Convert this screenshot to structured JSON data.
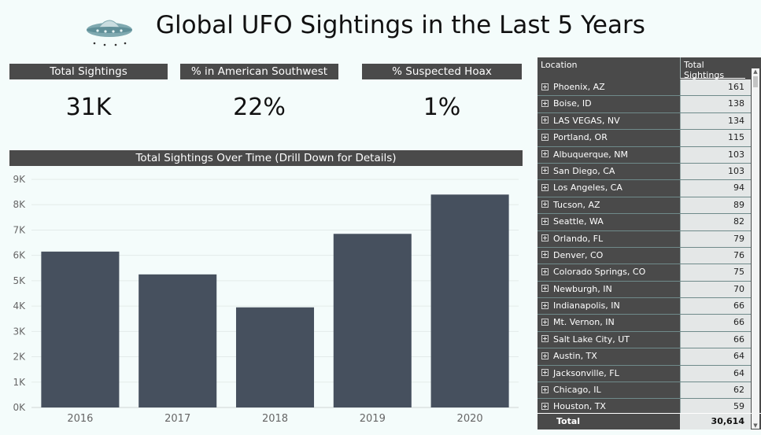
{
  "header": {
    "title": "Global UFO Sightings in the Last 5 Years",
    "icon": "ufo-icon"
  },
  "kpis": [
    {
      "label": "Total Sightings",
      "value": "31K"
    },
    {
      "label": "% in American Southwest",
      "value": "22%"
    },
    {
      "label": "% Suspected Hoax",
      "value": "1%"
    }
  ],
  "chart_title": "Total Sightings Over Time (Drill Down for Details)",
  "chart_data": {
    "type": "bar",
    "title": "Total Sightings Over Time (Drill Down for Details)",
    "categories": [
      "2016",
      "2017",
      "2018",
      "2019",
      "2020"
    ],
    "values": [
      6150,
      5250,
      3950,
      6850,
      8400
    ],
    "ylim": [
      0,
      9000
    ],
    "yticks": [
      0,
      1000,
      2000,
      3000,
      4000,
      5000,
      6000,
      7000,
      8000,
      9000
    ],
    "ytick_labels": [
      "0K",
      "1K",
      "2K",
      "3K",
      "4K",
      "5K",
      "6K",
      "7K",
      "8K",
      "9K"
    ],
    "xlabel": "",
    "ylabel": "",
    "grid": true,
    "bar_color": "#46505e"
  },
  "table": {
    "headers": {
      "location": "Location",
      "total": "Total Sightings"
    },
    "rows": [
      {
        "location": "Phoenix, AZ",
        "total": "161"
      },
      {
        "location": "Boise, ID",
        "total": "138"
      },
      {
        "location": "LAS VEGAS, NV",
        "total": "134"
      },
      {
        "location": "Portland, OR",
        "total": "115"
      },
      {
        "location": "Albuquerque, NM",
        "total": "103"
      },
      {
        "location": "San Diego, CA",
        "total": "103"
      },
      {
        "location": "Los Angeles, CA",
        "total": "94"
      },
      {
        "location": "Tucson, AZ",
        "total": "89"
      },
      {
        "location": "Seattle, WA",
        "total": "82"
      },
      {
        "location": "Orlando, FL",
        "total": "79"
      },
      {
        "location": "Denver, CO",
        "total": "76"
      },
      {
        "location": "Colorado Springs, CO",
        "total": "75"
      },
      {
        "location": "Newburgh, IN",
        "total": "70"
      },
      {
        "location": "Indianapolis, IN",
        "total": "66"
      },
      {
        "location": "Mt. Vernon, IN",
        "total": "66"
      },
      {
        "location": "Salt Lake City, UT",
        "total": "66"
      },
      {
        "location": "Austin, TX",
        "total": "64"
      },
      {
        "location": "Jacksonville, FL",
        "total": "64"
      },
      {
        "location": "Chicago, IL",
        "total": "62"
      },
      {
        "location": "Houston, TX",
        "total": "59"
      }
    ],
    "total_label": "Total",
    "total_value": "30,614"
  }
}
